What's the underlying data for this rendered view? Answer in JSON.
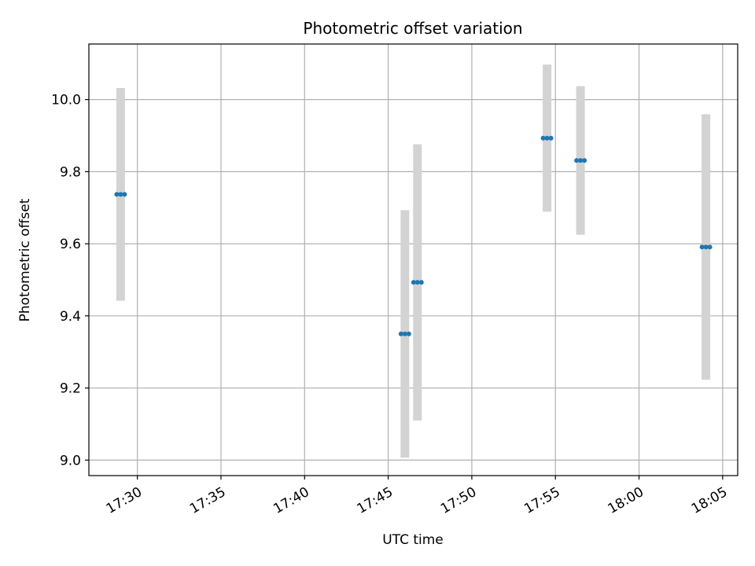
{
  "chart_data": {
    "type": "scatter",
    "title": "Photometric offset variation",
    "xlabel": "UTC time",
    "ylabel": "Photometric offset",
    "x_ticks": [
      "17:30",
      "17:35",
      "17:40",
      "17:45",
      "17:50",
      "17:55",
      "18:00",
      "18:05"
    ],
    "x_tick_minutes": [
      30,
      35,
      40,
      45,
      50,
      55,
      60,
      65
    ],
    "y_ticks": [
      "9.0",
      "9.2",
      "9.4",
      "9.6",
      "9.8",
      "10.0"
    ],
    "xlim_minutes": [
      27.1,
      65.9
    ],
    "ylim": [
      8.957,
      10.154
    ],
    "grid": true,
    "colors": {
      "points": "#1f77b4",
      "error_bars": "#d3d3d3",
      "grid": "#b0b0b0"
    },
    "series": [
      {
        "x_time": [
          "17:29",
          "17:46",
          "17:46:45",
          "17:54:30",
          "17:56:30",
          "18:04"
        ],
        "x_minutes": [
          29.0,
          46.0,
          46.75,
          54.5,
          56.5,
          64.0
        ],
        "y": [
          9.737,
          9.35,
          9.493,
          9.893,
          9.831,
          9.591
        ],
        "yerr": [
          0.295,
          0.343,
          0.383,
          0.204,
          0.206,
          0.368
        ]
      }
    ]
  }
}
